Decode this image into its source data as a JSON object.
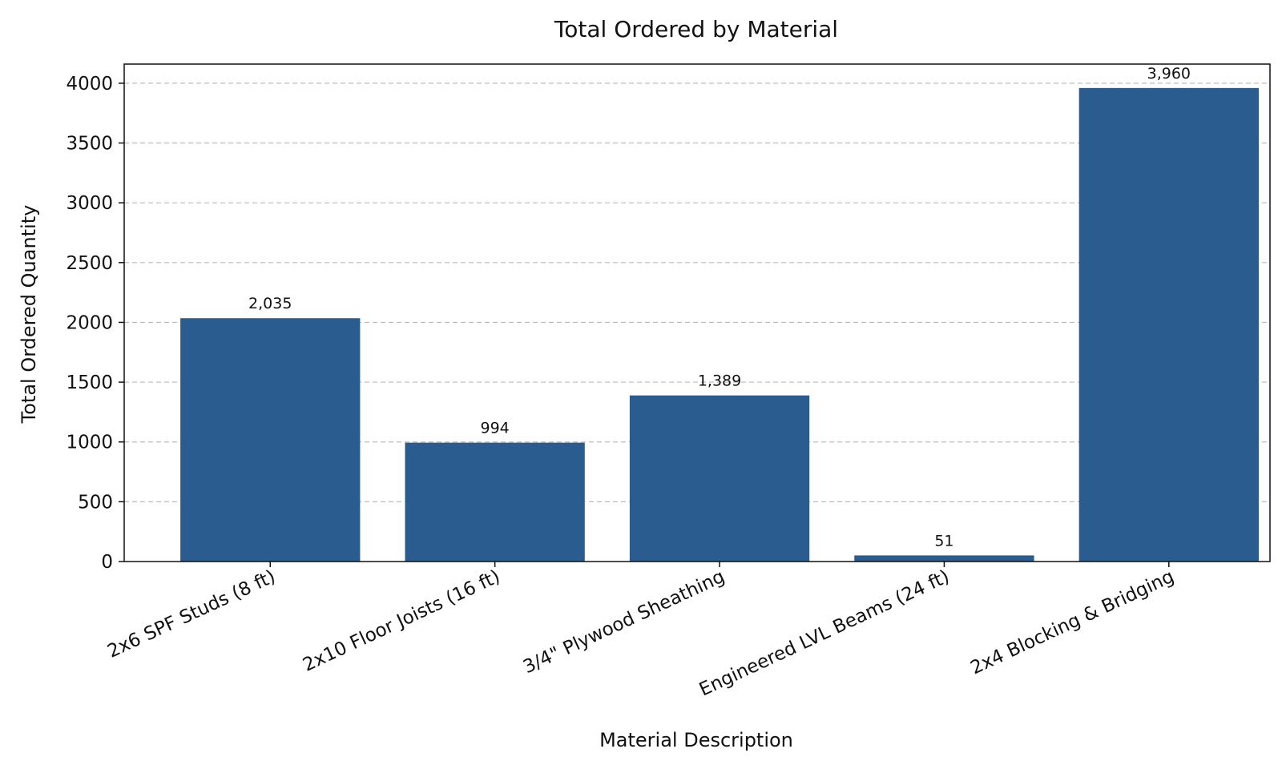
{
  "chart_data": {
    "type": "bar",
    "title": "Total Ordered by Material",
    "xlabel": "Material Description",
    "ylabel": "Total Ordered Quantity",
    "categories": [
      "2x6 SPF Studs (8 ft)",
      "2x10 Floor Joists (16 ft)",
      "3/4\" Plywood Sheathing",
      "Engineered LVL Beams (24 ft)",
      "2x4 Blocking & Bridging"
    ],
    "values": [
      2035,
      994,
      1389,
      51,
      3960
    ],
    "value_labels": [
      "2,035",
      "994",
      "1,389",
      "51",
      "3,960"
    ],
    "ylim": [
      0,
      4160
    ],
    "yticks": [
      0,
      500,
      1000,
      1500,
      2000,
      2500,
      3000,
      3500,
      4000
    ],
    "grid": true,
    "bar_color": "#2b5c8f",
    "grid_color": "#bbbbbb"
  }
}
